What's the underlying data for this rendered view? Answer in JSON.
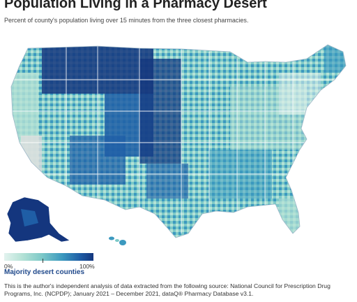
{
  "title": "Population Living in a Pharmacy Desert",
  "subtitle": "Percent of county's population living over 15 minutes from the three closest pharmacies.",
  "legend": {
    "min_label": "0%",
    "max_label": "100%",
    "caption": "Majority desert counties",
    "colors": [
      "#e3f3ef",
      "#b5e2d6",
      "#7dc9c8",
      "#3c99bf",
      "#1f5ea6",
      "#14367e"
    ]
  },
  "source": "This is the author's independent analysis of data extracted from the following source: National Council for Prescription Drug Programs, Inc. (NCPDP); January 2021 – December 2021, dataQ® Pharmacy Database v3.1."
}
